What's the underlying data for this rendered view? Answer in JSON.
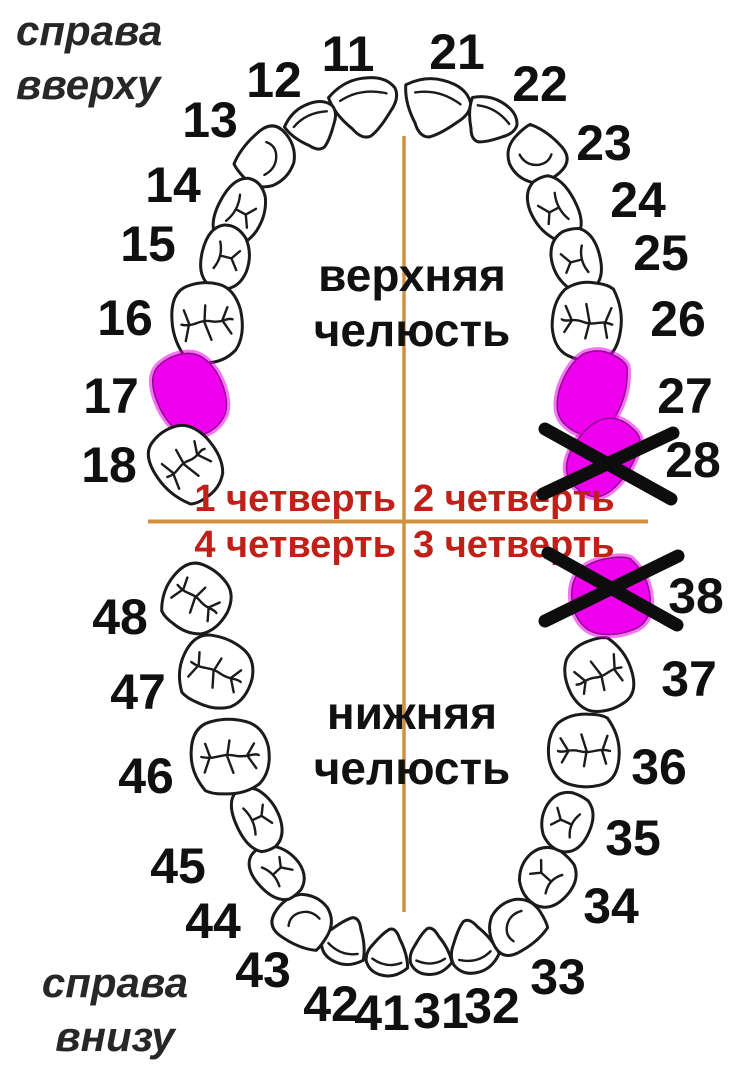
{
  "colors": {
    "highlight": "#EE00EE",
    "cross_mark": "#0D0D0D",
    "axis_line": "#D09040",
    "quarter_text": "#C02018",
    "tooth_outline": "#1B1B1B",
    "number_text": "#101010",
    "corner_text": "#272727",
    "jaw_text": "#111111",
    "background": "#FFFFFF"
  },
  "corner_labels": {
    "top_left_line1": "справа",
    "top_left_line2": "вверху",
    "bottom_left_line1": "справа",
    "bottom_left_line2": "внизу"
  },
  "jaw_labels": {
    "upper_line1": "верхняя",
    "upper_line2": "челюсть",
    "lower_line1": "нижняя",
    "lower_line2": "челюсть"
  },
  "quarters": {
    "q1": "1 четверть",
    "q2": "2 четверть",
    "q3": "3 четверть",
    "q4": "4 четверть"
  },
  "teeth": [
    {
      "number": "11",
      "status": "normal"
    },
    {
      "number": "12",
      "status": "normal"
    },
    {
      "number": "13",
      "status": "normal"
    },
    {
      "number": "14",
      "status": "normal"
    },
    {
      "number": "15",
      "status": "normal"
    },
    {
      "number": "16",
      "status": "normal"
    },
    {
      "number": "17",
      "status": "highlighted"
    },
    {
      "number": "18",
      "status": "normal"
    },
    {
      "number": "21",
      "status": "normal"
    },
    {
      "number": "22",
      "status": "normal"
    },
    {
      "number": "23",
      "status": "normal"
    },
    {
      "number": "24",
      "status": "normal"
    },
    {
      "number": "25",
      "status": "normal"
    },
    {
      "number": "26",
      "status": "normal"
    },
    {
      "number": "27",
      "status": "highlighted"
    },
    {
      "number": "28",
      "status": "extracted"
    },
    {
      "number": "31",
      "status": "normal"
    },
    {
      "number": "32",
      "status": "normal"
    },
    {
      "number": "33",
      "status": "normal"
    },
    {
      "number": "34",
      "status": "normal"
    },
    {
      "number": "35",
      "status": "normal"
    },
    {
      "number": "36",
      "status": "normal"
    },
    {
      "number": "37",
      "status": "normal"
    },
    {
      "number": "38",
      "status": "extracted"
    },
    {
      "number": "41",
      "status": "normal"
    },
    {
      "number": "42",
      "status": "normal"
    },
    {
      "number": "43",
      "status": "normal"
    },
    {
      "number": "44",
      "status": "normal"
    },
    {
      "number": "45",
      "status": "normal"
    },
    {
      "number": "46",
      "status": "normal"
    },
    {
      "number": "47",
      "status": "normal"
    },
    {
      "number": "48",
      "status": "normal"
    }
  ]
}
